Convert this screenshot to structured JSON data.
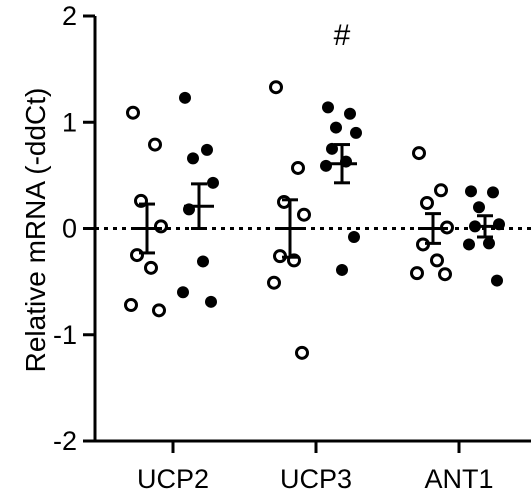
{
  "chart_data": {
    "type": "scatter",
    "ylabel": "Relative mRNA (-ddCt)",
    "ylim": [
      -2,
      2
    ],
    "yticks": [
      2,
      1,
      0,
      -1,
      -2
    ],
    "ytick_labels": [
      "2",
      "1",
      "0",
      "-1",
      "-2"
    ],
    "categories": [
      "UCP2",
      "UCP3",
      "ANT1"
    ],
    "reference_line": {
      "y": 0,
      "style": "dotted"
    },
    "annotations": [
      {
        "text": "#",
        "category": "UCP3",
        "group": "filled"
      }
    ],
    "groups": [
      {
        "marker": "open-circle",
        "values": {
          "UCP2": [
            1.09,
            0.79,
            0.26,
            0.02,
            -0.25,
            -0.37,
            -0.72,
            -0.77
          ],
          "UCP3": [
            1.33,
            0.57,
            0.25,
            0.13,
            -0.26,
            -0.3,
            -0.51,
            -1.17
          ],
          "ANT1": [
            0.71,
            0.36,
            0.24,
            0.01,
            -0.15,
            -0.3,
            -0.42,
            -0.43
          ]
        },
        "mean": {
          "UCP2": 0.0,
          "UCP3": 0.0,
          "ANT1": 0.0
        },
        "sem": {
          "UCP2": 0.23,
          "UCP3": 0.27,
          "ANT1": 0.14
        }
      },
      {
        "marker": "filled-circle",
        "values": {
          "UCP2": [
            1.23,
            0.74,
            0.66,
            0.43,
            0.18,
            -0.31,
            -0.6,
            -0.69
          ],
          "UCP3": [
            1.14,
            1.08,
            0.95,
            0.9,
            0.75,
            0.63,
            0.59,
            -0.08,
            -0.39
          ],
          "ANT1": [
            0.35,
            0.34,
            0.2,
            0.04,
            0.02,
            -0.14,
            -0.15,
            -0.49
          ]
        },
        "mean": {
          "UCP2": 0.21,
          "UCP3": 0.61,
          "ANT1": 0.02
        },
        "sem": {
          "UCP2": 0.21,
          "UCP3": 0.18,
          "ANT1": 0.1
        }
      }
    ]
  }
}
